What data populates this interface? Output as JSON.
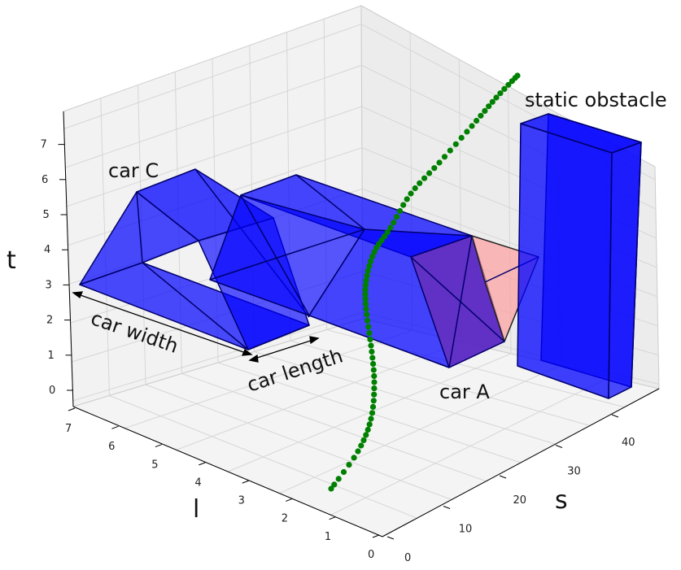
{
  "chart_data": {
    "type": "3d-scene",
    "axes": {
      "x": {
        "label": "l",
        "ticks": [
          "0",
          "1",
          "2",
          "3",
          "4",
          "5",
          "6",
          "7"
        ]
      },
      "y": {
        "label": "s",
        "ticks": [
          "0",
          "10",
          "20",
          "30",
          "40"
        ]
      },
      "z": {
        "label": "t",
        "ticks": [
          "0",
          "1",
          "2",
          "3",
          "4",
          "5",
          "6",
          "7"
        ]
      }
    },
    "objects": [
      {
        "name": "car C",
        "color": "#0000ff",
        "alpha": 0.7
      },
      {
        "name": "car A",
        "color": "#0000ff",
        "alpha": 0.7
      },
      {
        "name": "static obstacle",
        "color": "#0000ff",
        "alpha": 0.75
      },
      {
        "name": "collision region",
        "color": "#ff9999",
        "alpha": 0.6
      }
    ],
    "trajectory": {
      "color": "#008000",
      "marker": "circle"
    },
    "annotations": [
      "car C",
      "car A",
      "static obstacle",
      "car width",
      "car length"
    ],
    "grid": true
  }
}
